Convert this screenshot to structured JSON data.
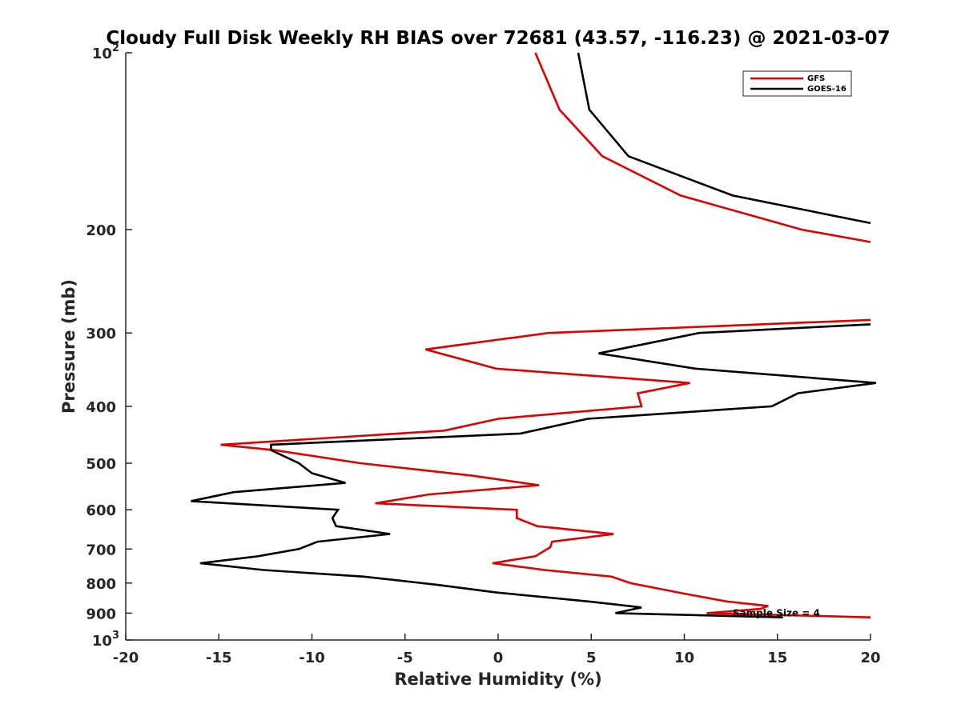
{
  "chart_data": {
    "type": "line",
    "title": "Cloudy Full Disk Weekly RH BIAS over 72681 (43.57, -116.23) @ 2021-03-07",
    "xlabel": "Relative Humidity (%)",
    "ylabel": "Pressure (mb)",
    "xlim": [
      -20,
      20
    ],
    "ylim": [
      100,
      1000
    ],
    "y_scale": "log",
    "y_reversed": true,
    "grid": false,
    "legend_position": "top-right",
    "x_ticks": [
      "-20",
      "-15",
      "-10",
      "-5",
      "0",
      "5",
      "10",
      "15",
      "20"
    ],
    "y_ticks": [
      {
        "value": 100,
        "base": "10",
        "exp": "2"
      },
      {
        "value": 200,
        "label": "200"
      },
      {
        "value": 300,
        "label": "300"
      },
      {
        "value": 400,
        "label": "400"
      },
      {
        "value": 500,
        "label": "500"
      },
      {
        "value": 600,
        "label": "600"
      },
      {
        "value": 700,
        "label": "700"
      },
      {
        "value": 800,
        "label": "800"
      },
      {
        "value": 900,
        "label": "900"
      },
      {
        "value": 1000,
        "base": "10",
        "exp": "3"
      }
    ],
    "annotation": {
      "text": "Sample Size = 4",
      "x": 12.6,
      "y": 900
    },
    "series": [
      {
        "name": "GFS",
        "color": "#e00000",
        "points": [
          [
            2.0,
            100
          ],
          [
            3.3,
            125
          ],
          [
            5.6,
            150
          ],
          [
            9.8,
            175
          ],
          [
            16.3,
            200
          ],
          [
            20,
            210
          ],
          null,
          [
            20,
            285
          ],
          [
            2.7,
            300
          ],
          [
            -3.9,
            320
          ],
          [
            -0.1,
            345
          ],
          [
            10.3,
            365
          ],
          [
            7.5,
            380
          ],
          [
            7.7,
            400
          ],
          [
            0,
            420
          ],
          [
            -2.9,
            440
          ],
          [
            -14.9,
            465
          ],
          [
            -12.0,
            475
          ],
          [
            -7.4,
            500
          ],
          [
            -1.4,
            525
          ],
          [
            2.2,
            545
          ],
          [
            -3.7,
            565
          ],
          [
            -6.6,
            585
          ],
          [
            1.0,
            600
          ],
          [
            1.0,
            620
          ],
          [
            2.1,
            640
          ],
          [
            6.2,
            660
          ],
          [
            2.9,
            680
          ],
          [
            2.8,
            695
          ],
          [
            2.0,
            720
          ],
          [
            -0.3,
            740
          ],
          [
            2.5,
            760
          ],
          [
            6.1,
            780
          ],
          [
            7.1,
            800
          ],
          [
            10.1,
            835
          ],
          [
            12.3,
            860
          ],
          [
            14.5,
            875
          ],
          [
            14.1,
            885
          ],
          [
            11.2,
            900
          ],
          [
            20,
            915
          ]
        ]
      },
      {
        "name": "GOES-16",
        "color": "#000000",
        "points": [
          [
            4.3,
            100
          ],
          [
            4.9,
            125
          ],
          [
            7.0,
            150
          ],
          [
            12.6,
            175
          ],
          [
            20,
            195
          ],
          null,
          [
            20,
            290
          ],
          [
            10.8,
            300
          ],
          [
            5.4,
            325
          ],
          [
            10.6,
            345
          ],
          [
            20.3,
            365
          ],
          [
            16.1,
            380
          ],
          [
            14.7,
            400
          ],
          [
            4.8,
            420
          ],
          [
            1.2,
            445
          ],
          [
            -12.2,
            465
          ],
          [
            -12.2,
            475
          ],
          [
            -10.7,
            500
          ],
          [
            -10.0,
            520
          ],
          [
            -8.2,
            540
          ],
          [
            -14.2,
            560
          ],
          [
            -16.5,
            580
          ],
          [
            -8.6,
            600
          ],
          [
            -8.9,
            620
          ],
          [
            -8.7,
            640
          ],
          [
            -5.8,
            660
          ],
          [
            -9.7,
            680
          ],
          [
            -10.7,
            700
          ],
          [
            -12.9,
            720
          ],
          [
            -16.0,
            740
          ],
          [
            -12.6,
            760
          ],
          [
            -7.2,
            780
          ],
          [
            -3.3,
            805
          ],
          [
            -0.1,
            830
          ],
          [
            4.9,
            860
          ],
          [
            7.7,
            880
          ],
          [
            6.3,
            900
          ],
          [
            15.3,
            915
          ]
        ]
      }
    ]
  }
}
